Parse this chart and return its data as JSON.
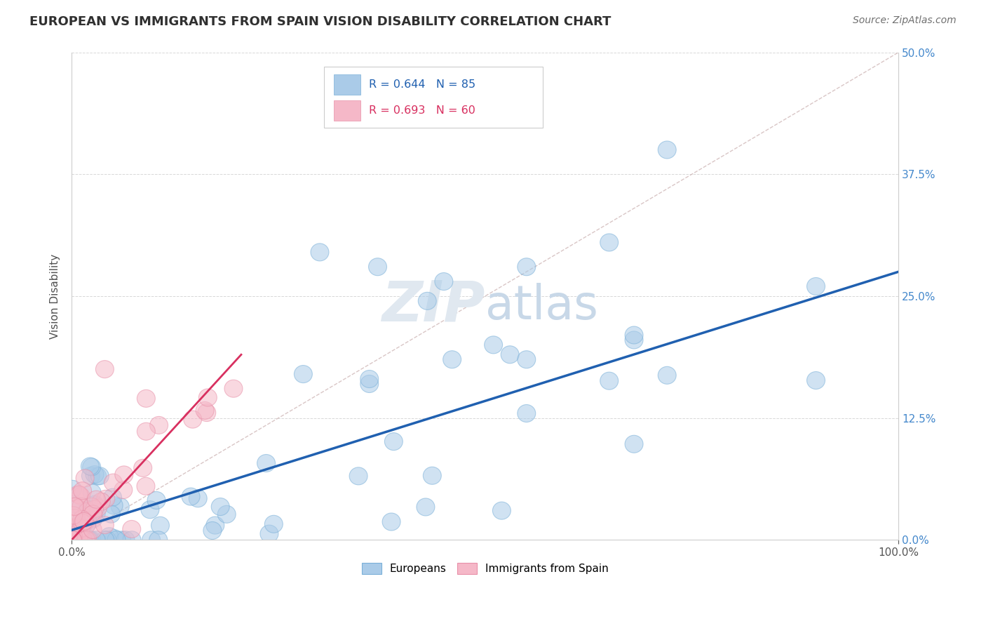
{
  "title": "EUROPEAN VS IMMIGRANTS FROM SPAIN VISION DISABILITY CORRELATION CHART",
  "source": "Source: ZipAtlas.com",
  "ylabel": "Vision Disability",
  "xlim": [
    0,
    1.0
  ],
  "ylim": [
    0,
    0.5
  ],
  "xtick_positions": [
    0.0,
    1.0
  ],
  "xtick_labels": [
    "0.0%",
    "100.0%"
  ],
  "ytick_positions": [
    0.0,
    0.125,
    0.25,
    0.375,
    0.5
  ],
  "ytick_labels_right": [
    "0.0%",
    "12.5%",
    "25.0%",
    "37.5%",
    "50.0%"
  ],
  "blue_color": "#aacbe8",
  "blue_edge_color": "#7ab0d8",
  "pink_color": "#f5b8c8",
  "pink_edge_color": "#e890a8",
  "blue_line_color": "#2060b0",
  "pink_line_color": "#d83060",
  "ref_line_color": "#d0b8b8",
  "background_color": "#ffffff",
  "grid_color": "#d8d8d8",
  "title_color": "#303030",
  "source_color": "#707070",
  "ylabel_color": "#505050",
  "right_tick_color": "#4488cc",
  "watermark_color": "#e0e8f0",
  "legend_r1": "R = 0.644",
  "legend_n1": "N = 85",
  "legend_r2": "R = 0.693",
  "legend_n2": "N = 60",
  "legend_color1": "#2060b0",
  "legend_color2": "#d83060"
}
